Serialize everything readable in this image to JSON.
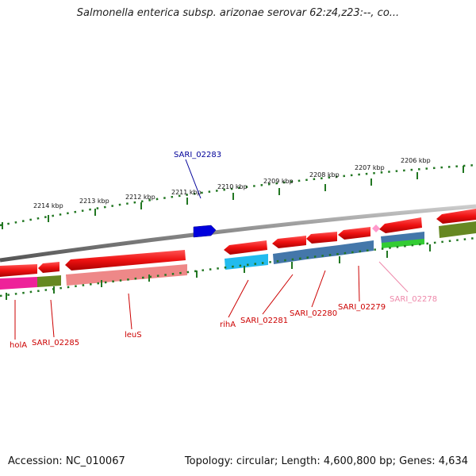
{
  "title": "Salmonella enterica subsp. arizonae serovar 62:z4,z23:--, co...",
  "footer": {
    "accession": "Accession: NC_010067",
    "topology": "Topology: circular; Length: 4,600,800 bp; Genes: 4,634"
  },
  "scale_labels": [
    "2214 kbp",
    "2213 kbp",
    "2212 kbp",
    "2211 kbp",
    "2210 kbp",
    "2209 kbp",
    "2208 kbp",
    "2207 kbp",
    "2206 kbp"
  ],
  "gene_labels": {
    "sari_02283": "SARI_02283",
    "hola": "holA",
    "sari_02285": "SARI_02285",
    "leus": "leuS",
    "riha": "rihA",
    "sari_02281": "SARI_02281",
    "sari_02280": "SARI_02280",
    "sari_02279": "SARI_02279",
    "sari_02278": "SARI_02278"
  },
  "colors": {
    "cds_red": "#ee1111",
    "highlight_blue": "#0000dd",
    "cyan": "#22bbee",
    "steelblue": "#4477aa",
    "magenta": "#ee2299",
    "olive": "#668822",
    "salmon": "#ee8888",
    "green": "#33cc33",
    "pink": "#ff99cc",
    "tick_green": "#227722",
    "label_red": "#cc0000",
    "label_blue": "#000099",
    "label_pink": "#ee88aa"
  }
}
